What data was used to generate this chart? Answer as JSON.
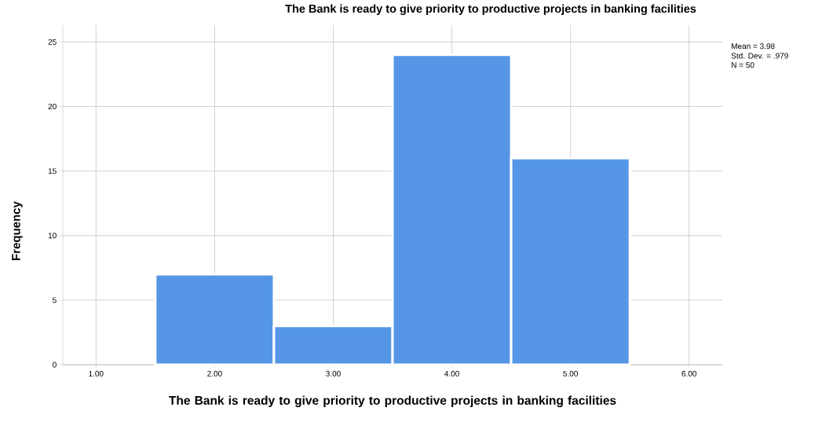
{
  "chart_data": {
    "type": "histogram",
    "title": "The Bank is ready to give priority to productive projects in banking facilities",
    "xlabel": "The Bank is ready to give priority to productive projects in banking facilities",
    "ylabel": "Frequency",
    "bins": [
      1.5,
      2.5,
      3.5,
      4.5,
      5.5
    ],
    "values": [
      7,
      3,
      24,
      16
    ],
    "color": "#5596e6",
    "xlim": [
      0.72,
      6.28
    ],
    "ylim": [
      0,
      26.3
    ],
    "xticks": [
      {
        "value": 1,
        "label": "1.00"
      },
      {
        "value": 2,
        "label": "2.00"
      },
      {
        "value": 3,
        "label": "3.00"
      },
      {
        "value": 4,
        "label": "4.00"
      },
      {
        "value": 5,
        "label": "5.00"
      },
      {
        "value": 6,
        "label": "6.00"
      }
    ],
    "yticks": [
      0,
      5,
      10,
      15,
      20,
      25
    ],
    "grid": true,
    "annotations": [
      "Mean = 3.98",
      "Std. Dev. = .979",
      "N = 50"
    ]
  }
}
